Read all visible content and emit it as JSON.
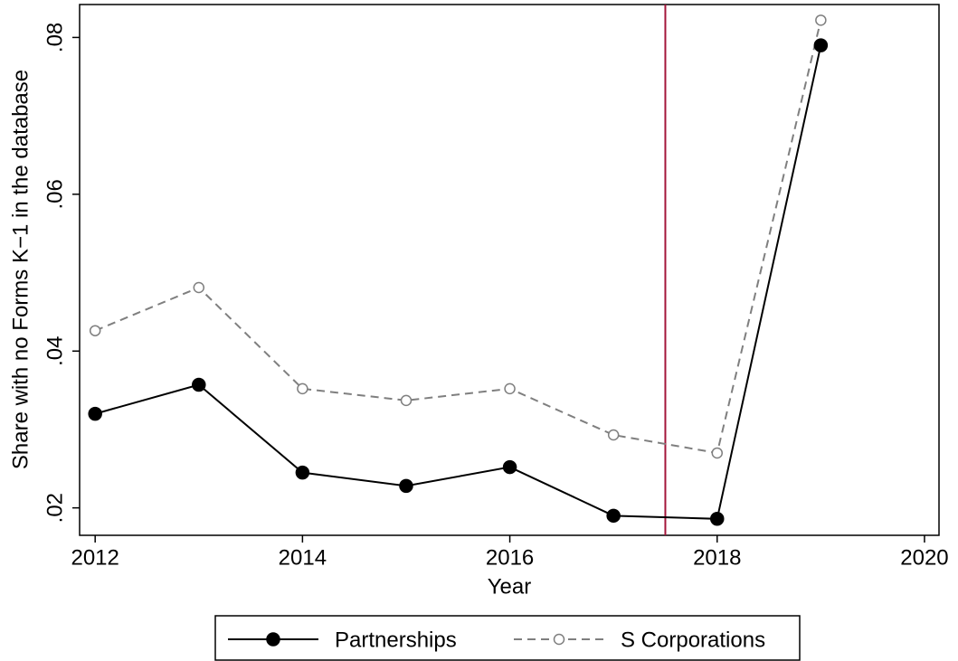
{
  "chart_data": {
    "type": "line",
    "x_label": "Year",
    "y_label": "Share with no Forms K−1 in the database",
    "x": [
      2012,
      2013,
      2014,
      2015,
      2016,
      2017,
      2018,
      2019
    ],
    "series": [
      {
        "name": "Partnerships",
        "color": "#000000",
        "dash": "solid",
        "marker": "filled",
        "values": [
          0.032,
          0.0357,
          0.0245,
          0.0228,
          0.0252,
          0.019,
          0.0186,
          0.079
        ]
      },
      {
        "name": "S Corporations",
        "color": "#7f7f7f",
        "dash": "dashed",
        "marker": "hollow",
        "values": [
          0.0426,
          0.0481,
          0.0352,
          0.0337,
          0.0352,
          0.0293,
          0.027,
          0.0822
        ]
      }
    ],
    "xlim": [
      2011.85,
      2020.14
    ],
    "ylim": [
      0.0165,
      0.0842
    ],
    "xticks": [
      2012,
      2014,
      2016,
      2018,
      2020
    ],
    "yticks": [
      {
        "value": 0.02,
        "label": ".02"
      },
      {
        "value": 0.04,
        "label": ".04"
      },
      {
        "value": 0.06,
        "label": ".06"
      },
      {
        "value": 0.08,
        "label": ".08"
      }
    ],
    "vline": 2017.5,
    "vline_color": "#a3153a",
    "legend": "bottom"
  }
}
